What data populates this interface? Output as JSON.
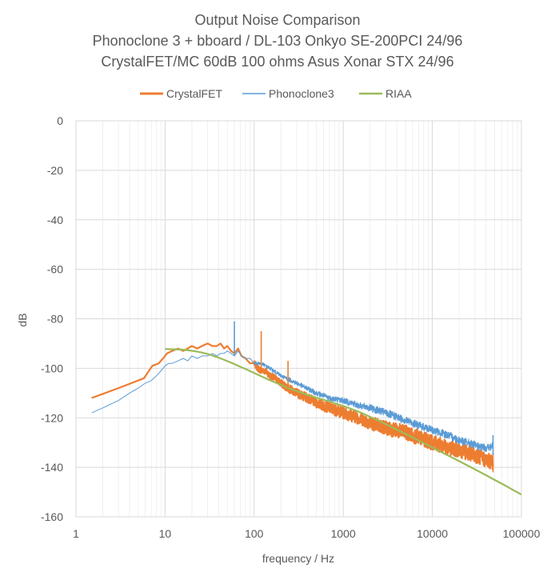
{
  "chart_data": {
    "type": "line",
    "title": [
      "Output Noise Comparison",
      "Phonoclone 3 + bboard / DL-103 Onkyo SE-200PCI 24/96",
      "CrystalFET/MC 60dB 100 ohms Asus Xonar STX 24/96"
    ],
    "xlabel": "frequency / Hz",
    "ylabel": "dB",
    "xscale": "log",
    "xlim": [
      1,
      100000
    ],
    "ylim": [
      -160,
      0
    ],
    "xticks": [
      "1",
      "10",
      "100",
      "1000",
      "10000",
      "100000"
    ],
    "yticks": [
      "0",
      "-20",
      "-40",
      "-60",
      "-80",
      "-100",
      "-120",
      "-140",
      "-160"
    ],
    "grid": true,
    "legend_position": "top",
    "series": [
      {
        "name": "CrystalFET",
        "color": "#ED7D31",
        "x": [
          1.5,
          3,
          5.8,
          7.2,
          8.5,
          9.5,
          10.5,
          12,
          14,
          16,
          18,
          20,
          23,
          26,
          30,
          34,
          38,
          42,
          46,
          50,
          55,
          60,
          66,
          72,
          80,
          90,
          100,
          110,
          120,
          135,
          150,
          170,
          200,
          240,
          300,
          400,
          500,
          700,
          1000,
          1500,
          2000,
          3000,
          5000,
          7000,
          10000,
          15000,
          20000,
          30000,
          40000,
          48000
        ],
        "y": [
          -112,
          -108,
          -104,
          -99,
          -98,
          -96,
          -94,
          -93,
          -92,
          -93,
          -92,
          -91,
          -92,
          -91,
          -90,
          -91,
          -91,
          -90,
          -92,
          -91,
          -93,
          -94,
          -92,
          -95,
          -96,
          -98,
          -98,
          -100,
          -101,
          -101,
          -103,
          -104,
          -106,
          -108,
          -110,
          -112,
          -114,
          -116,
          -118,
          -120,
          -122,
          -124,
          -126,
          -128,
          -130,
          -132,
          -133,
          -135,
          -137,
          -138
        ]
      },
      {
        "name": "Phonoclone3",
        "color": "#5B9BD5",
        "x": [
          1.5,
          2,
          3,
          4,
          5,
          6,
          7,
          8,
          9,
          10,
          11,
          12,
          14,
          16,
          18,
          20,
          23,
          26,
          30,
          34,
          38,
          42,
          46,
          50,
          55,
          60,
          66,
          72,
          80,
          90,
          100,
          120,
          150,
          200,
          300,
          500,
          700,
          1000,
          1500,
          2000,
          3000,
          5000,
          7000,
          10000,
          15000,
          20000,
          25000,
          30000,
          35000,
          40000,
          45000,
          48000
        ],
        "y": [
          -118,
          -116,
          -113,
          -110,
          -108,
          -106,
          -105,
          -103,
          -101,
          -99,
          -98,
          -98,
          -97,
          -96,
          -97,
          -95,
          -96,
          -95,
          -95,
          -94,
          -95,
          -94,
          -94,
          -93,
          -94,
          -95,
          -93,
          -95,
          -96,
          -96,
          -98,
          -98,
          -100,
          -103,
          -106,
          -110,
          -112,
          -113,
          -115,
          -116,
          -118,
          -121,
          -123,
          -125,
          -127,
          -129,
          -130,
          -131,
          -132,
          -132,
          -132,
          -131
        ]
      },
      {
        "name": "RIAA",
        "color": "#9BBB59",
        "x": [
          10,
          12,
          15,
          20,
          25,
          30,
          40,
          50,
          60,
          70,
          80,
          100,
          125,
          150,
          200,
          250,
          300,
          400,
          500,
          600,
          700,
          800,
          1000,
          1250,
          1500,
          2000,
          2500,
          3000,
          4000,
          5000,
          6000,
          8000,
          10000,
          12500,
          15000,
          20000,
          25000,
          30000,
          40000,
          50000,
          60000,
          70000,
          80000,
          100000
        ],
        "y": [
          -92.2,
          -92.3,
          -92.4,
          -92.9,
          -93.5,
          -94.2,
          -95.7,
          -97.1,
          -98.3,
          -99.4,
          -100.3,
          -101.9,
          -103.5,
          -104.8,
          -106.7,
          -108.2,
          -109.2,
          -110.8,
          -111.9,
          -112.7,
          -113.4,
          -114.1,
          -115.2,
          -116.5,
          -117.6,
          -119.6,
          -121.2,
          -122.6,
          -124.8,
          -126.5,
          -127.9,
          -130.2,
          -132,
          -133.8,
          -135.2,
          -137.5,
          -139.3,
          -140.8,
          -143.2,
          -145.1,
          -146.6,
          -147.9,
          -149.1,
          -151
        ]
      }
    ],
    "annotations": [
      {
        "series": "Phonoclone3",
        "x": 60,
        "y": -81,
        "label": ""
      },
      {
        "series": "CrystalFET",
        "x": 120,
        "y": -85,
        "label": ""
      },
      {
        "series": "CrystalFET",
        "x": 240,
        "y": -97,
        "label": ""
      }
    ]
  }
}
